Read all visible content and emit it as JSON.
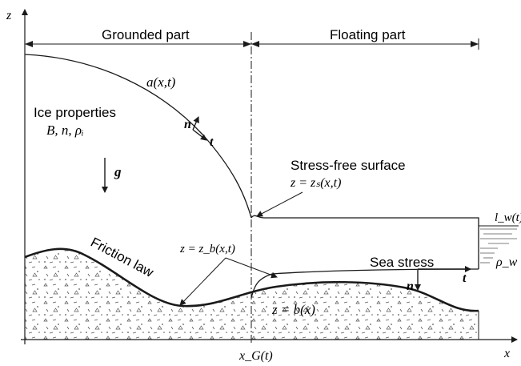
{
  "axes": {
    "z_label": "z",
    "x_label": "x"
  },
  "regions": {
    "grounded": "Grounded part",
    "floating": "Floating part"
  },
  "surface": {
    "upper_label": "a(x,t)",
    "stress_free_label": "Stress-free surface",
    "stress_free_eq": "z = zₛ(x,t)",
    "basal_eq": "z = z_b(x,t)",
    "bed_eq": "z = b(x)"
  },
  "ice": {
    "properties_label": "Ice properties",
    "properties_params": "B, n, ρᵢ",
    "gravity": "g"
  },
  "labels": {
    "friction": "Friction law",
    "sea_stress": "Sea stress",
    "water_level": "l_w(t)",
    "water_density": "ρ_w",
    "grounding_line": "x_G(t)",
    "normal": "n",
    "tangent": "t"
  },
  "colors": {
    "ink": "#1a1a1a",
    "hatch": "#555555"
  }
}
